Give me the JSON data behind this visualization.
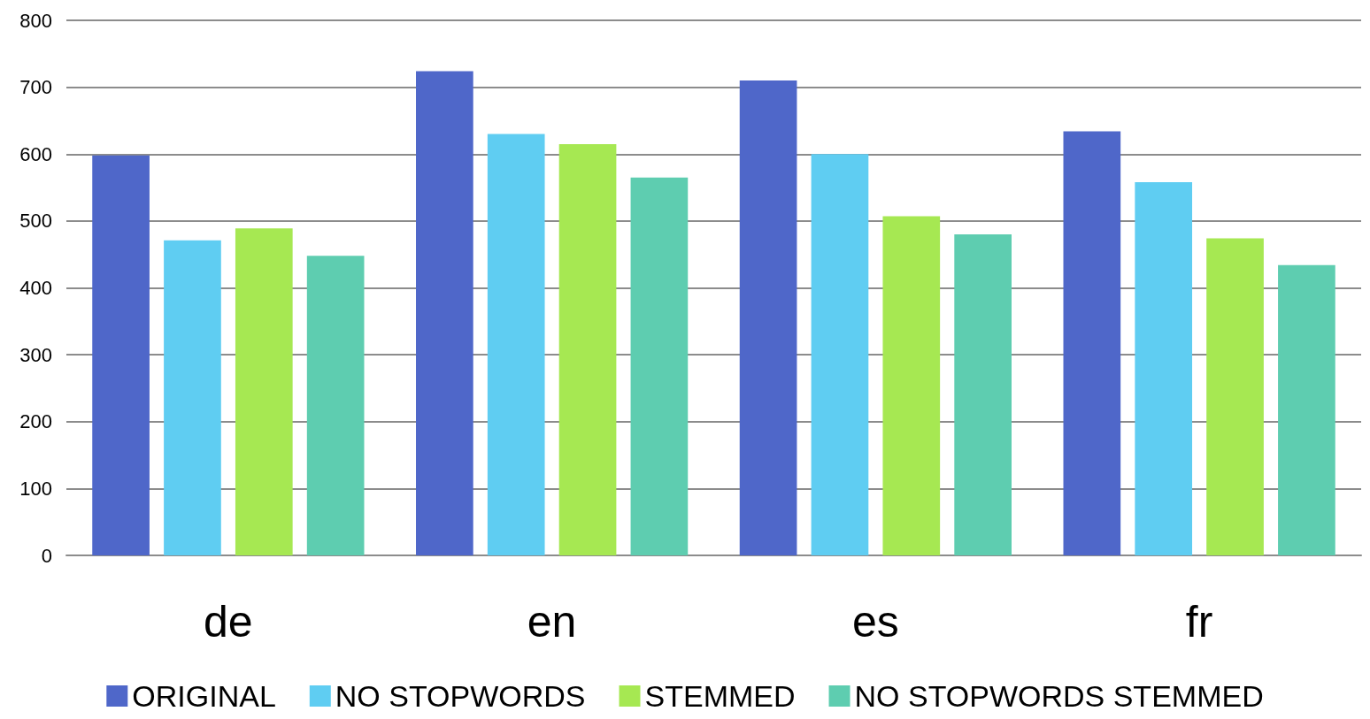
{
  "chart_data": {
    "type": "bar",
    "categories": [
      "de",
      "en",
      "es",
      "fr"
    ],
    "series": [
      {
        "name": "ORIGINAL",
        "color": "#4f67c9",
        "values": [
          598,
          724,
          710,
          634
        ]
      },
      {
        "name": "NO STOPWORDS",
        "color": "#5fcdf2",
        "values": [
          471,
          630,
          600,
          558
        ]
      },
      {
        "name": "STEMMED",
        "color": "#a6e852",
        "values": [
          489,
          615,
          507,
          474
        ]
      },
      {
        "name": "NO STOPWORDS STEMMED",
        "color": "#5ecdb0",
        "values": [
          448,
          565,
          480,
          434
        ]
      }
    ],
    "ylim": [
      0,
      800
    ],
    "yticks": [
      0,
      100,
      200,
      300,
      400,
      500,
      600,
      700,
      800
    ],
    "grid": "y",
    "legend": "bottom"
  }
}
